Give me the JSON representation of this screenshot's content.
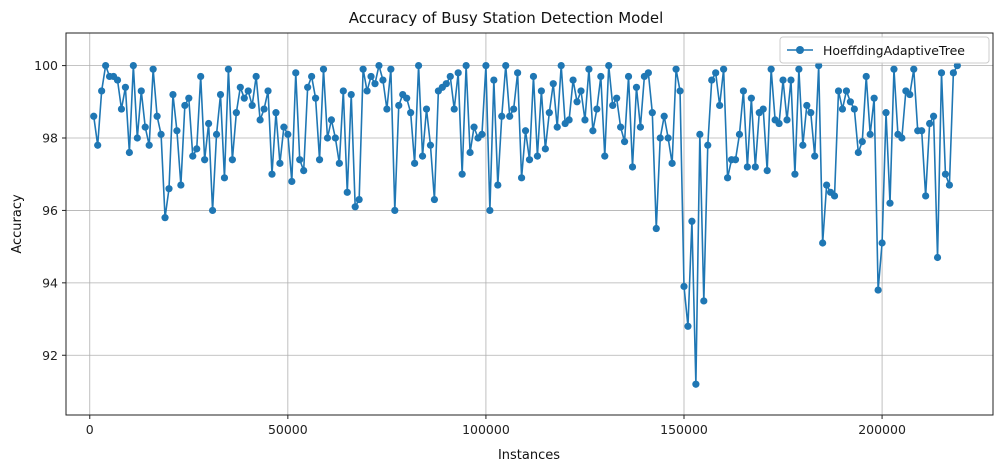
{
  "chart_data": {
    "type": "line",
    "title": "Accuracy of Busy Station Detection Model",
    "xlabel": "Instances",
    "ylabel": "Accuracy",
    "xlim": [
      -6000,
      228000
    ],
    "ylim": [
      90.35,
      100.9
    ],
    "xticks": [
      0,
      50000,
      100000,
      150000,
      200000
    ],
    "xtick_labels": [
      "0",
      "50000",
      "100000",
      "150000",
      "200000"
    ],
    "yticks": [
      92,
      94,
      96,
      98,
      100
    ],
    "ytick_labels": [
      "92",
      "94",
      "96",
      "98",
      "100"
    ],
    "grid": true,
    "legend_position": "top-right",
    "series": [
      {
        "name": "HoeffdingAdaptiveTree",
        "color": "#1f77b4",
        "marker": "circle",
        "x": [
          1000,
          2000,
          3000,
          4000,
          5000,
          6000,
          7000,
          8000,
          9000,
          10000,
          11000,
          12000,
          13000,
          14000,
          15000,
          16000,
          17000,
          18000,
          19000,
          20000,
          21000,
          22000,
          23000,
          24000,
          25000,
          26000,
          27000,
          28000,
          29000,
          30000,
          31000,
          32000,
          33000,
          34000,
          35000,
          36000,
          37000,
          38000,
          39000,
          40000,
          41000,
          42000,
          43000,
          44000,
          45000,
          46000,
          47000,
          48000,
          49000,
          50000,
          51000,
          52000,
          53000,
          54000,
          55000,
          56000,
          57000,
          58000,
          59000,
          60000,
          61000,
          62000,
          63000,
          64000,
          65000,
          66000,
          67000,
          68000,
          69000,
          70000,
          71000,
          72000,
          73000,
          74000,
          75000,
          76000,
          77000,
          78000,
          79000,
          80000,
          81000,
          82000,
          83000,
          84000,
          85000,
          86000,
          87000,
          88000,
          89000,
          90000,
          91000,
          92000,
          93000,
          94000,
          95000,
          96000,
          97000,
          98000,
          99000,
          100000,
          101000,
          102000,
          103000,
          104000,
          105000,
          106000,
          107000,
          108000,
          109000,
          110000,
          111000,
          112000,
          113000,
          114000,
          115000,
          116000,
          117000,
          118000,
          119000,
          120000,
          121000,
          122000,
          123000,
          124000,
          125000,
          126000,
          127000,
          128000,
          129000,
          130000,
          131000,
          132000,
          133000,
          134000,
          135000,
          136000,
          137000,
          138000,
          139000,
          140000,
          141000,
          142000,
          143000,
          144000,
          145000,
          146000,
          147000,
          148000,
          149000,
          150000,
          151000,
          152000,
          153000,
          154000,
          155000,
          156000,
          157000,
          158000,
          159000,
          160000,
          161000,
          162000,
          163000,
          164000,
          165000,
          166000,
          167000,
          168000,
          169000,
          170000,
          171000,
          172000,
          173000,
          174000,
          175000,
          176000,
          177000,
          178000,
          179000,
          180000,
          181000,
          182000,
          183000,
          184000,
          185000,
          186000,
          187000,
          188000,
          189000,
          190000,
          191000,
          192000,
          193000,
          194000,
          195000,
          196000,
          197000,
          198000,
          199000,
          200000,
          201000,
          202000,
          203000,
          204000,
          205000,
          206000,
          207000,
          208000,
          209000,
          210000,
          211000,
          212000,
          213000,
          214000,
          215000,
          216000,
          217000,
          218000,
          219000
        ],
        "y": [
          98.6,
          97.8,
          99.3,
          100.0,
          99.7,
          99.7,
          99.6,
          98.8,
          99.4,
          97.6,
          100.0,
          98.0,
          99.3,
          98.3,
          97.8,
          99.9,
          98.6,
          98.1,
          95.8,
          96.6,
          99.2,
          98.2,
          96.7,
          98.9,
          99.1,
          97.5,
          97.7,
          99.7,
          97.4,
          98.4,
          96.0,
          98.1,
          99.2,
          96.9,
          99.9,
          97.4,
          98.7,
          99.4,
          99.1,
          99.3,
          98.9,
          99.7,
          98.5,
          98.8,
          99.3,
          97.0,
          98.7,
          97.3,
          98.3,
          98.1,
          96.8,
          99.8,
          97.4,
          97.1,
          99.4,
          99.7,
          99.1,
          97.4,
          99.9,
          98.0,
          98.5,
          98.0,
          97.3,
          99.3,
          96.5,
          99.2,
          96.1,
          96.3,
          99.9,
          99.3,
          99.7,
          99.5,
          100.0,
          99.6,
          98.8,
          99.9,
          96.0,
          98.9,
          99.2,
          99.1,
          98.7,
          97.3,
          100.0,
          97.5,
          98.8,
          97.8,
          96.3,
          99.3,
          99.4,
          99.5,
          99.7,
          98.8,
          99.8,
          97.0,
          100.0,
          97.6,
          98.3,
          98.0,
          98.1,
          100.0,
          96.0,
          99.6,
          96.7,
          98.6,
          100.0,
          98.6,
          98.8,
          99.8,
          96.9,
          98.2,
          97.4,
          99.7,
          97.5,
          99.3,
          97.7,
          98.7,
          99.5,
          98.3,
          100.0,
          98.4,
          98.5,
          99.6,
          99.0,
          99.3,
          98.5,
          99.9,
          98.2,
          98.8,
          99.7,
          97.5,
          100.0,
          98.9,
          99.1,
          98.3,
          97.9,
          99.7,
          97.2,
          99.4,
          98.3,
          99.7,
          99.8,
          98.7,
          95.5,
          98.0,
          98.6,
          98.0,
          97.3,
          99.9,
          99.3,
          93.9,
          92.8,
          95.7,
          91.2,
          98.1,
          93.5,
          97.8,
          99.6,
          99.8,
          98.9,
          99.9,
          96.9,
          97.4,
          97.4,
          98.1,
          99.3,
          97.2,
          99.1,
          97.2,
          98.7,
          98.8,
          97.1,
          99.9,
          98.5,
          98.4,
          99.6,
          98.5,
          99.6,
          97.0,
          99.9,
          97.8,
          98.9,
          98.7,
          97.5,
          100.0,
          95.1,
          96.7,
          96.5,
          96.4,
          99.3,
          98.8,
          99.3,
          99.0,
          98.8,
          97.6,
          97.9,
          99.7,
          98.1,
          99.1,
          93.8,
          95.1,
          98.7,
          96.2,
          99.9,
          98.1,
          98.0,
          99.3,
          99.2,
          99.9,
          98.2,
          98.2,
          96.4,
          98.4,
          98.6,
          94.7,
          99.8,
          97.0,
          96.7,
          99.8,
          100.0
        ]
      }
    ]
  }
}
